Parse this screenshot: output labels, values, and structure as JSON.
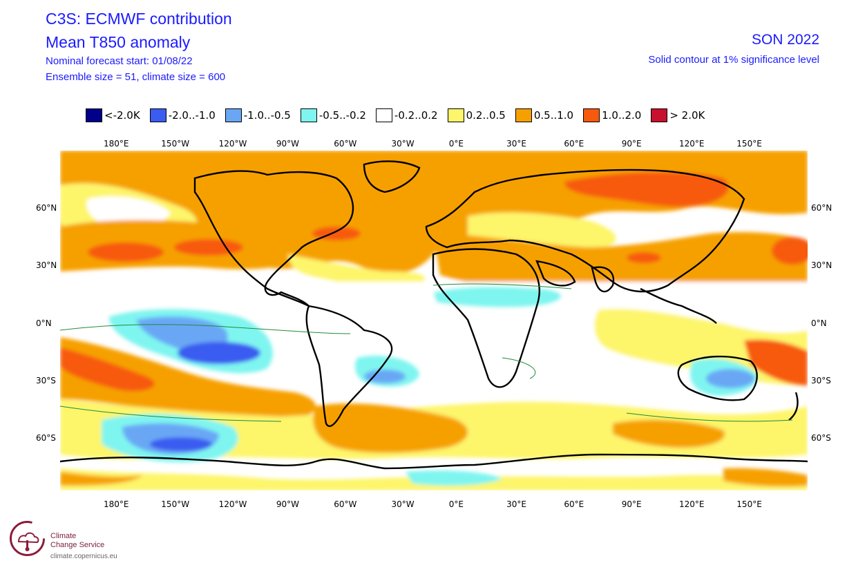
{
  "header": {
    "title_line1": "C3S: ECMWF contribution",
    "title_line2": "Mean T850 anomaly",
    "forecast_start": "Nominal forecast start: 01/08/22",
    "ensemble": "Ensemble size = 51, climate size = 600",
    "season": "SON 2022",
    "significance": "Solid contour at 1% significance level"
  },
  "legend": [
    {
      "label": "<-2.0K",
      "color": "#00008b"
    },
    {
      "label": "-2.0..-1.0",
      "color": "#3a5cf0"
    },
    {
      "label": "-1.0..-0.5",
      "color": "#69a7f5"
    },
    {
      "label": "-0.5..-0.2",
      "color": "#7ff5f0"
    },
    {
      "label": "-0.2..0.2",
      "color": "#ffffff"
    },
    {
      "label": "0.2..0.5",
      "color": "#fdf56a"
    },
    {
      "label": "0.5..1.0",
      "color": "#f6a000"
    },
    {
      "label": "1.0..2.0",
      "color": "#f75a0e"
    },
    {
      "label": "> 2.0K",
      "color": "#c8102e"
    }
  ],
  "axes": {
    "lon_labels": [
      "180°E",
      "150°W",
      "120°W",
      "90°W",
      "60°W",
      "30°W",
      "0°E",
      "30°E",
      "60°E",
      "90°E",
      "120°E",
      "150°E"
    ],
    "lat_labels": [
      "60°N",
      "30°N",
      "0°N",
      "30°S",
      "60°S"
    ]
  },
  "logo": {
    "line1": "Climate",
    "line2": "Change Service",
    "url": "climate.copernicus.eu"
  }
}
